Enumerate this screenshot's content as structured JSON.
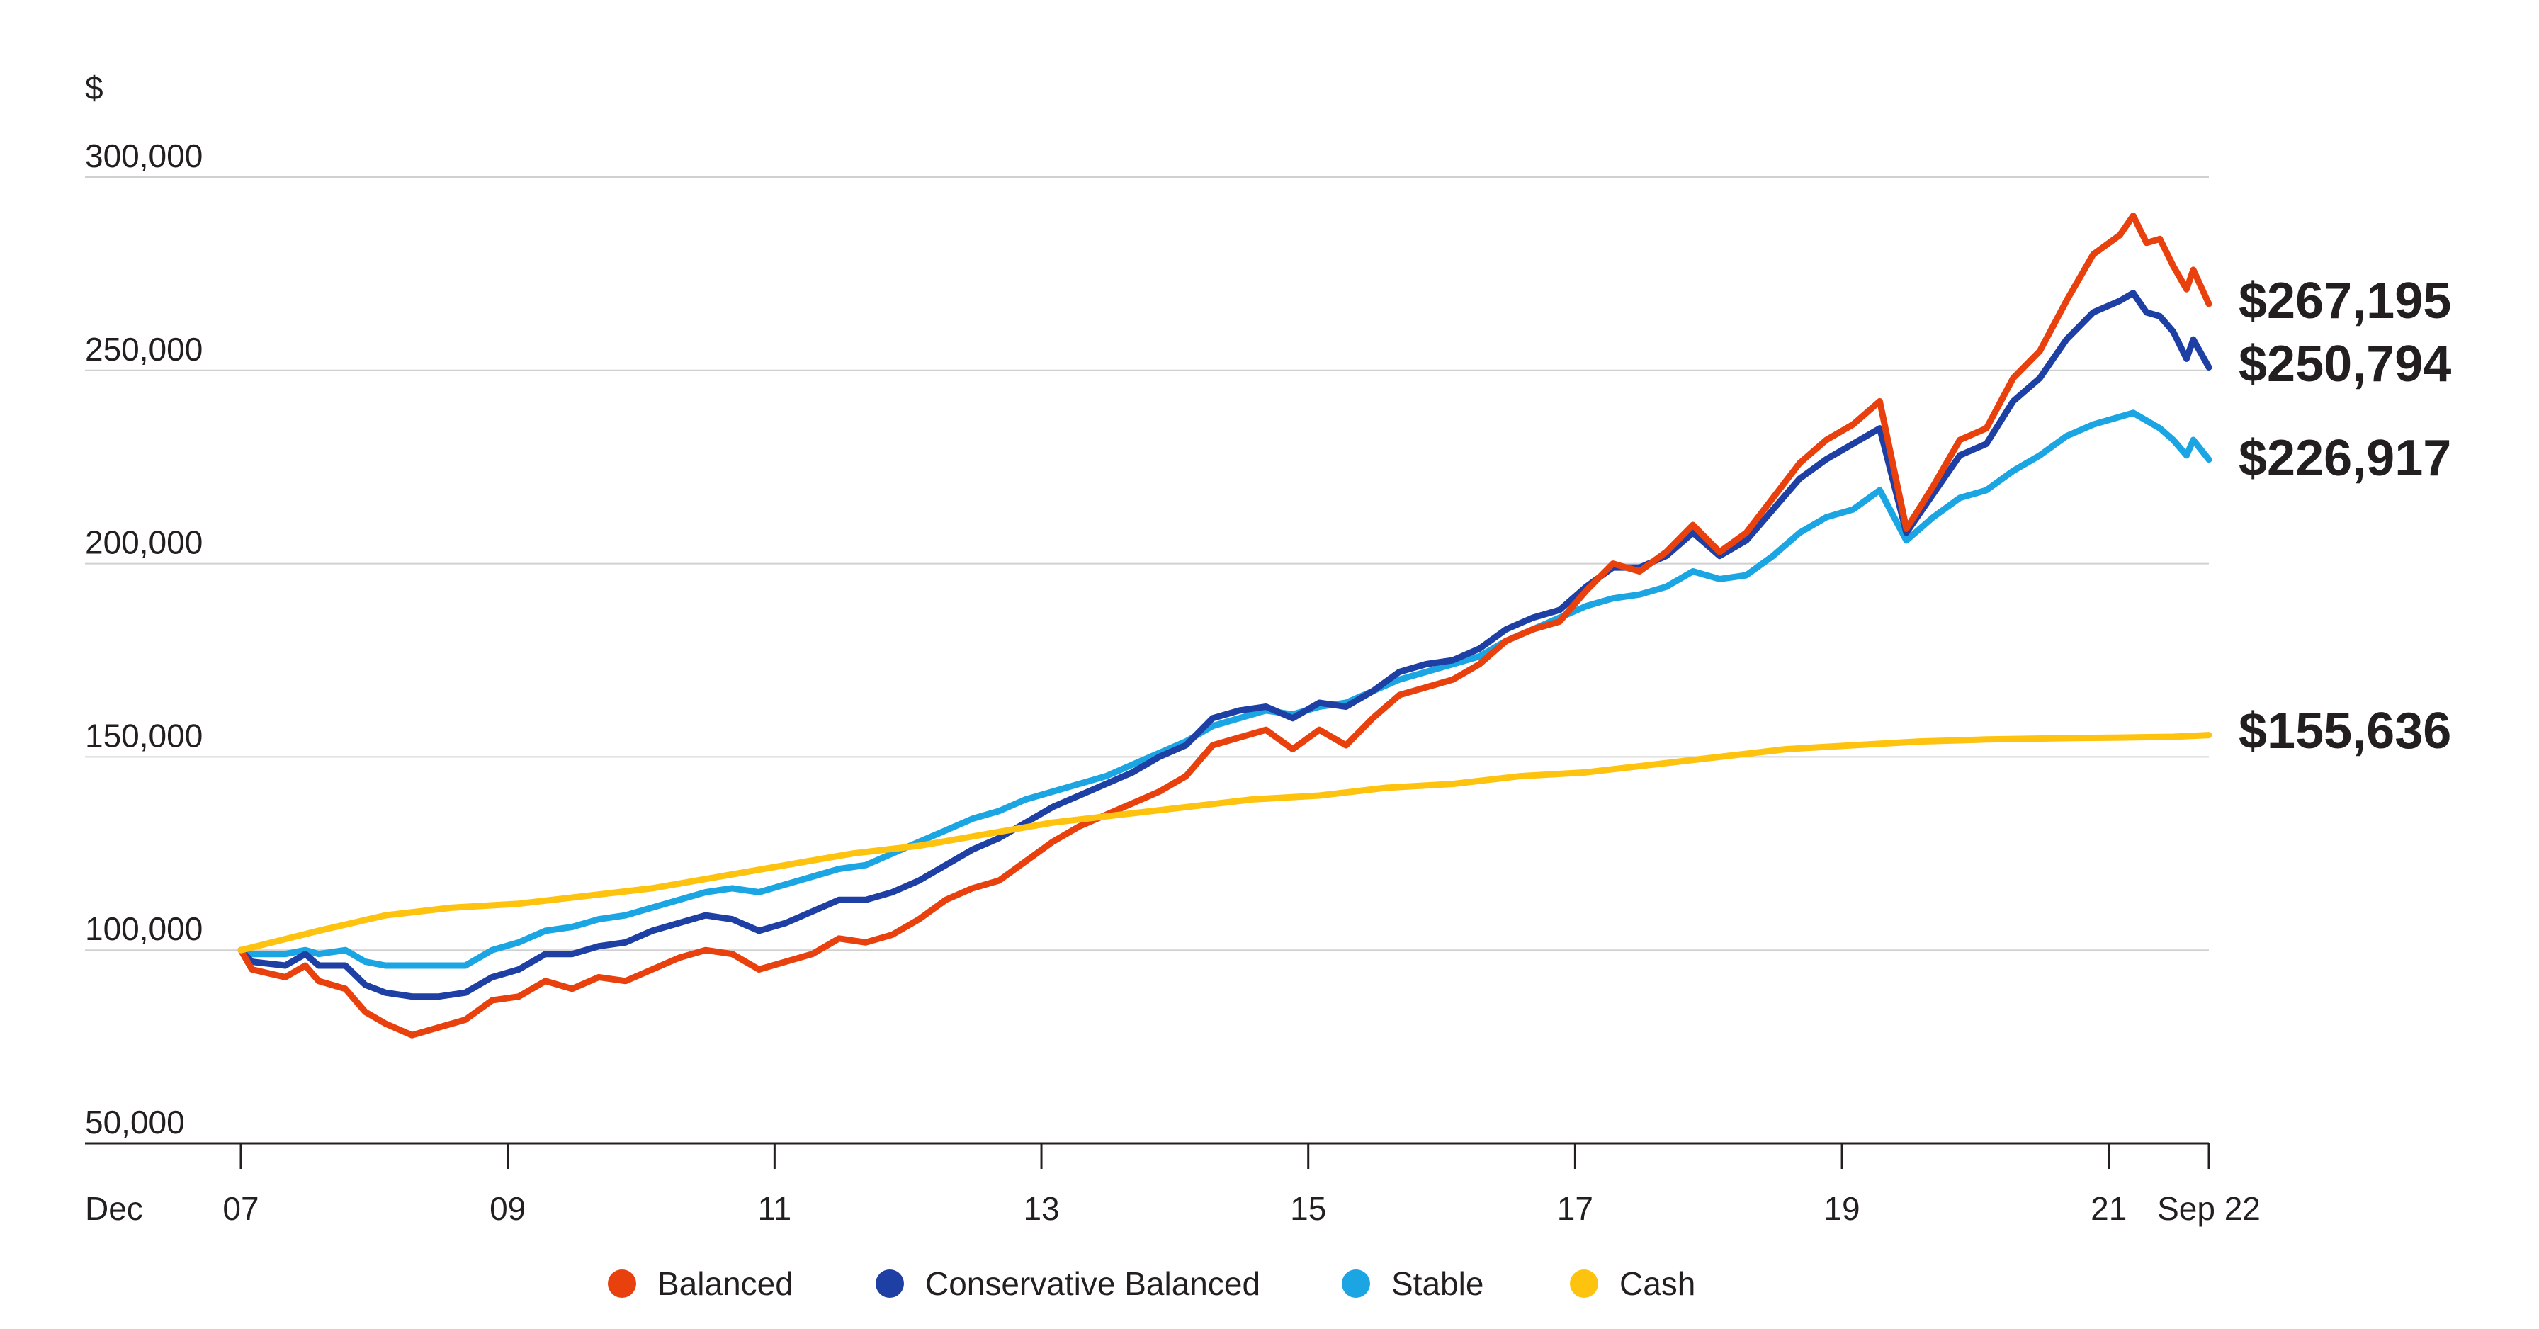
{
  "chart_data": {
    "type": "line",
    "ylabel": "$",
    "xlabel": "",
    "ylim": [
      50000,
      300000
    ],
    "y_ticks": [
      {
        "value": 300000,
        "label": "300,000"
      },
      {
        "value": 250000,
        "label": "250,000"
      },
      {
        "value": 200000,
        "label": "200,000"
      },
      {
        "value": 150000,
        "label": "150,000"
      },
      {
        "value": 100000,
        "label": "100,000"
      },
      {
        "value": 50000,
        "label": "50,000"
      }
    ],
    "x_prefix_label": "Dec",
    "x_ticks": [
      {
        "value": 2007.917,
        "label": "07"
      },
      {
        "value": 2009.917,
        "label": "09"
      },
      {
        "value": 2011.917,
        "label": "11"
      },
      {
        "value": 2013.917,
        "label": "13"
      },
      {
        "value": 2015.917,
        "label": "15"
      },
      {
        "value": 2017.917,
        "label": "17"
      },
      {
        "value": 2019.917,
        "label": "19"
      },
      {
        "value": 2021.917,
        "label": "21"
      },
      {
        "value": 2022.667,
        "label": "Sep 22"
      }
    ],
    "xlim": [
      2007.917,
      2022.667
    ],
    "grid": true,
    "legend_position": "bottom",
    "series": [
      {
        "name": "Balanced",
        "color": "#e8410d",
        "end_label": "$267,195",
        "points": [
          [
            2007.917,
            100000
          ],
          [
            2008.0,
            95000
          ],
          [
            2008.25,
            93000
          ],
          [
            2008.4,
            96000
          ],
          [
            2008.5,
            92000
          ],
          [
            2008.7,
            90000
          ],
          [
            2008.85,
            84000
          ],
          [
            2009.0,
            81000
          ],
          [
            2009.2,
            78000
          ],
          [
            2009.4,
            80000
          ],
          [
            2009.6,
            82000
          ],
          [
            2009.8,
            87000
          ],
          [
            2010.0,
            88000
          ],
          [
            2010.2,
            92000
          ],
          [
            2010.4,
            90000
          ],
          [
            2010.6,
            93000
          ],
          [
            2010.8,
            92000
          ],
          [
            2011.0,
            95000
          ],
          [
            2011.2,
            98000
          ],
          [
            2011.4,
            100000
          ],
          [
            2011.6,
            99000
          ],
          [
            2011.8,
            95000
          ],
          [
            2012.0,
            97000
          ],
          [
            2012.2,
            99000
          ],
          [
            2012.4,
            103000
          ],
          [
            2012.6,
            102000
          ],
          [
            2012.8,
            104000
          ],
          [
            2013.0,
            108000
          ],
          [
            2013.2,
            113000
          ],
          [
            2013.4,
            116000
          ],
          [
            2013.6,
            118000
          ],
          [
            2013.8,
            123000
          ],
          [
            2014.0,
            128000
          ],
          [
            2014.2,
            132000
          ],
          [
            2014.4,
            135000
          ],
          [
            2014.6,
            138000
          ],
          [
            2014.8,
            141000
          ],
          [
            2015.0,
            145000
          ],
          [
            2015.2,
            153000
          ],
          [
            2015.4,
            155000
          ],
          [
            2015.6,
            157000
          ],
          [
            2015.8,
            152000
          ],
          [
            2016.0,
            157000
          ],
          [
            2016.2,
            153000
          ],
          [
            2016.4,
            160000
          ],
          [
            2016.6,
            166000
          ],
          [
            2016.8,
            168000
          ],
          [
            2017.0,
            170000
          ],
          [
            2017.2,
            174000
          ],
          [
            2017.4,
            180000
          ],
          [
            2017.6,
            183000
          ],
          [
            2017.8,
            185000
          ],
          [
            2018.0,
            193000
          ],
          [
            2018.2,
            200000
          ],
          [
            2018.4,
            198000
          ],
          [
            2018.6,
            203000
          ],
          [
            2018.8,
            210000
          ],
          [
            2019.0,
            203000
          ],
          [
            2019.2,
            208000
          ],
          [
            2019.4,
            217000
          ],
          [
            2019.6,
            226000
          ],
          [
            2019.8,
            232000
          ],
          [
            2020.0,
            236000
          ],
          [
            2020.2,
            242000
          ],
          [
            2020.4,
            209000
          ],
          [
            2020.6,
            220000
          ],
          [
            2020.8,
            232000
          ],
          [
            2021.0,
            235000
          ],
          [
            2021.2,
            248000
          ],
          [
            2021.4,
            255000
          ],
          [
            2021.6,
            268000
          ],
          [
            2021.8,
            280000
          ],
          [
            2022.0,
            285000
          ],
          [
            2022.1,
            290000
          ],
          [
            2022.2,
            283000
          ],
          [
            2022.3,
            284000
          ],
          [
            2022.4,
            277000
          ],
          [
            2022.5,
            271000
          ],
          [
            2022.55,
            276000
          ],
          [
            2022.667,
            267195
          ]
        ]
      },
      {
        "name": "Conservative Balanced",
        "color": "#1e3fa4",
        "end_label": "$250,794",
        "points": [
          [
            2007.917,
            100000
          ],
          [
            2008.0,
            97000
          ],
          [
            2008.25,
            96000
          ],
          [
            2008.4,
            99000
          ],
          [
            2008.5,
            96000
          ],
          [
            2008.7,
            96000
          ],
          [
            2008.85,
            91000
          ],
          [
            2009.0,
            89000
          ],
          [
            2009.2,
            88000
          ],
          [
            2009.4,
            88000
          ],
          [
            2009.6,
            89000
          ],
          [
            2009.8,
            93000
          ],
          [
            2010.0,
            95000
          ],
          [
            2010.2,
            99000
          ],
          [
            2010.4,
            99000
          ],
          [
            2010.6,
            101000
          ],
          [
            2010.8,
            102000
          ],
          [
            2011.0,
            105000
          ],
          [
            2011.2,
            107000
          ],
          [
            2011.4,
            109000
          ],
          [
            2011.6,
            108000
          ],
          [
            2011.8,
            105000
          ],
          [
            2012.0,
            107000
          ],
          [
            2012.2,
            110000
          ],
          [
            2012.4,
            113000
          ],
          [
            2012.6,
            113000
          ],
          [
            2012.8,
            115000
          ],
          [
            2013.0,
            118000
          ],
          [
            2013.2,
            122000
          ],
          [
            2013.4,
            126000
          ],
          [
            2013.6,
            129000
          ],
          [
            2013.8,
            133000
          ],
          [
            2014.0,
            137000
          ],
          [
            2014.2,
            140000
          ],
          [
            2014.4,
            143000
          ],
          [
            2014.6,
            146000
          ],
          [
            2014.8,
            150000
          ],
          [
            2015.0,
            153000
          ],
          [
            2015.2,
            160000
          ],
          [
            2015.4,
            162000
          ],
          [
            2015.6,
            163000
          ],
          [
            2015.8,
            160000
          ],
          [
            2016.0,
            164000
          ],
          [
            2016.2,
            163000
          ],
          [
            2016.4,
            167000
          ],
          [
            2016.6,
            172000
          ],
          [
            2016.8,
            174000
          ],
          [
            2017.0,
            175000
          ],
          [
            2017.2,
            178000
          ],
          [
            2017.4,
            183000
          ],
          [
            2017.6,
            186000
          ],
          [
            2017.8,
            188000
          ],
          [
            2018.0,
            194000
          ],
          [
            2018.2,
            199000
          ],
          [
            2018.4,
            199000
          ],
          [
            2018.6,
            202000
          ],
          [
            2018.8,
            208000
          ],
          [
            2019.0,
            202000
          ],
          [
            2019.2,
            206000
          ],
          [
            2019.4,
            214000
          ],
          [
            2019.6,
            222000
          ],
          [
            2019.8,
            227000
          ],
          [
            2020.0,
            231000
          ],
          [
            2020.2,
            235000
          ],
          [
            2020.4,
            208000
          ],
          [
            2020.6,
            218000
          ],
          [
            2020.8,
            228000
          ],
          [
            2021.0,
            231000
          ],
          [
            2021.2,
            242000
          ],
          [
            2021.4,
            248000
          ],
          [
            2021.6,
            258000
          ],
          [
            2021.8,
            265000
          ],
          [
            2022.0,
            268000
          ],
          [
            2022.1,
            270000
          ],
          [
            2022.2,
            265000
          ],
          [
            2022.3,
            264000
          ],
          [
            2022.4,
            260000
          ],
          [
            2022.5,
            253000
          ],
          [
            2022.55,
            258000
          ],
          [
            2022.667,
            250794
          ]
        ]
      },
      {
        "name": "Stable",
        "color": "#1ba6e3",
        "end_label": "$226,917",
        "points": [
          [
            2007.917,
            100000
          ],
          [
            2008.0,
            99000
          ],
          [
            2008.25,
            99000
          ],
          [
            2008.4,
            100000
          ],
          [
            2008.5,
            99000
          ],
          [
            2008.7,
            100000
          ],
          [
            2008.85,
            97000
          ],
          [
            2009.0,
            96000
          ],
          [
            2009.2,
            96000
          ],
          [
            2009.4,
            96000
          ],
          [
            2009.6,
            96000
          ],
          [
            2009.8,
            100000
          ],
          [
            2010.0,
            102000
          ],
          [
            2010.2,
            105000
          ],
          [
            2010.4,
            106000
          ],
          [
            2010.6,
            108000
          ],
          [
            2010.8,
            109000
          ],
          [
            2011.0,
            111000
          ],
          [
            2011.2,
            113000
          ],
          [
            2011.4,
            115000
          ],
          [
            2011.6,
            116000
          ],
          [
            2011.8,
            115000
          ],
          [
            2012.0,
            117000
          ],
          [
            2012.2,
            119000
          ],
          [
            2012.4,
            121000
          ],
          [
            2012.6,
            122000
          ],
          [
            2012.8,
            125000
          ],
          [
            2013.0,
            128000
          ],
          [
            2013.2,
            131000
          ],
          [
            2013.4,
            134000
          ],
          [
            2013.6,
            136000
          ],
          [
            2013.8,
            139000
          ],
          [
            2014.0,
            141000
          ],
          [
            2014.2,
            143000
          ],
          [
            2014.4,
            145000
          ],
          [
            2014.6,
            148000
          ],
          [
            2014.8,
            151000
          ],
          [
            2015.0,
            154000
          ],
          [
            2015.2,
            158000
          ],
          [
            2015.4,
            160000
          ],
          [
            2015.6,
            162000
          ],
          [
            2015.8,
            161000
          ],
          [
            2016.0,
            163000
          ],
          [
            2016.2,
            164000
          ],
          [
            2016.4,
            167000
          ],
          [
            2016.6,
            170000
          ],
          [
            2016.8,
            172000
          ],
          [
            2017.0,
            174000
          ],
          [
            2017.2,
            176000
          ],
          [
            2017.4,
            180000
          ],
          [
            2017.6,
            183000
          ],
          [
            2017.8,
            186000
          ],
          [
            2018.0,
            189000
          ],
          [
            2018.2,
            191000
          ],
          [
            2018.4,
            192000
          ],
          [
            2018.6,
            194000
          ],
          [
            2018.8,
            198000
          ],
          [
            2019.0,
            196000
          ],
          [
            2019.2,
            197000
          ],
          [
            2019.4,
            202000
          ],
          [
            2019.6,
            208000
          ],
          [
            2019.8,
            212000
          ],
          [
            2020.0,
            214000
          ],
          [
            2020.2,
            219000
          ],
          [
            2020.4,
            206000
          ],
          [
            2020.6,
            212000
          ],
          [
            2020.8,
            217000
          ],
          [
            2021.0,
            219000
          ],
          [
            2021.2,
            224000
          ],
          [
            2021.4,
            228000
          ],
          [
            2021.6,
            233000
          ],
          [
            2021.8,
            236000
          ],
          [
            2022.0,
            238000
          ],
          [
            2022.1,
            239000
          ],
          [
            2022.2,
            237000
          ],
          [
            2022.3,
            235000
          ],
          [
            2022.4,
            232000
          ],
          [
            2022.5,
            228000
          ],
          [
            2022.55,
            232000
          ],
          [
            2022.667,
            226917
          ]
        ]
      },
      {
        "name": "Cash",
        "color": "#fdc30f",
        "end_label": "$155,636",
        "points": [
          [
            2007.917,
            100000
          ],
          [
            2008.5,
            105000
          ],
          [
            2009.0,
            109000
          ],
          [
            2009.5,
            111000
          ],
          [
            2010.0,
            112000
          ],
          [
            2010.5,
            114000
          ],
          [
            2011.0,
            116000
          ],
          [
            2011.5,
            119000
          ],
          [
            2012.0,
            122000
          ],
          [
            2012.5,
            125000
          ],
          [
            2013.0,
            127000
          ],
          [
            2013.5,
            130000
          ],
          [
            2014.0,
            133000
          ],
          [
            2014.5,
            135000
          ],
          [
            2015.0,
            137000
          ],
          [
            2015.5,
            139000
          ],
          [
            2016.0,
            140000
          ],
          [
            2016.5,
            142000
          ],
          [
            2017.0,
            143000
          ],
          [
            2017.5,
            145000
          ],
          [
            2018.0,
            146000
          ],
          [
            2018.5,
            148000
          ],
          [
            2019.0,
            150000
          ],
          [
            2019.5,
            152000
          ],
          [
            2020.0,
            153000
          ],
          [
            2020.5,
            154000
          ],
          [
            2021.0,
            154500
          ],
          [
            2021.5,
            154800
          ],
          [
            2022.0,
            155000
          ],
          [
            2022.4,
            155200
          ],
          [
            2022.667,
            155636
          ]
        ]
      }
    ]
  }
}
